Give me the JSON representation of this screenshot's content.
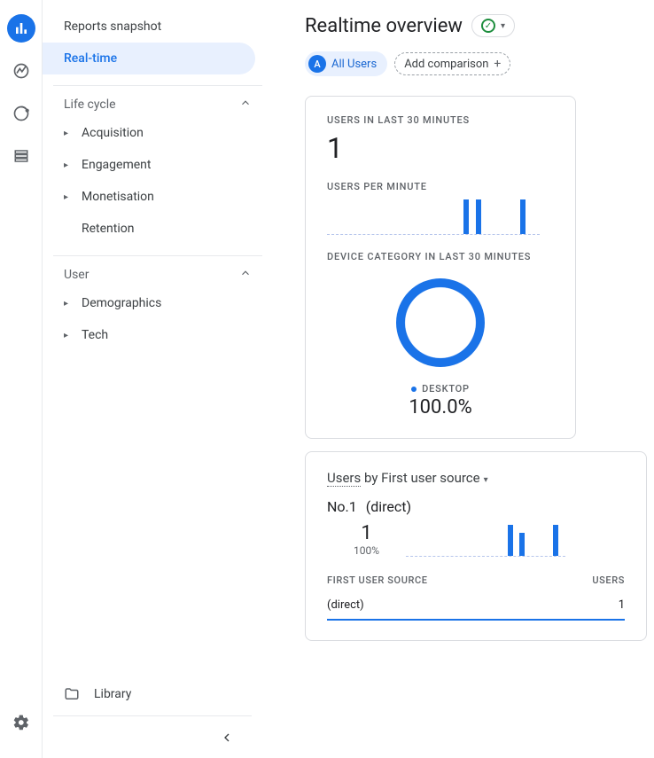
{
  "colors": {
    "primary": "#1a73e8",
    "success": "#1e8e3e",
    "text_muted": "#5f6368"
  },
  "sidebar": {
    "snapshot": "Reports snapshot",
    "realtime": "Real-time",
    "sections": {
      "lifecycle": {
        "title": "Life cycle",
        "items": [
          "Acquisition",
          "Engagement",
          "Monetisation",
          "Retention"
        ]
      },
      "user": {
        "title": "User",
        "items": [
          "Demographics",
          "Tech"
        ]
      }
    },
    "library": "Library"
  },
  "header": {
    "title": "Realtime overview",
    "chip_badge": "A",
    "chip_label": "All Users",
    "add_comparison": "Add comparison"
  },
  "card1": {
    "users_label": "USERS IN LAST 30 MINUTES",
    "users_value": "1",
    "upm_label": "USERS PER MINUTE",
    "bars": [
      {
        "left_pct": 64,
        "height_pct": 95
      },
      {
        "left_pct": 70,
        "height_pct": 95
      },
      {
        "left_pct": 91,
        "height_pct": 95
      }
    ],
    "device_label": "DEVICE CATEGORY IN LAST 30 MINUTES",
    "donut_pct": 100,
    "donut_color": "#1a73e8",
    "legend_name": "DESKTOP",
    "legend_value": "100.0%"
  },
  "card2": {
    "title_metric": "Users",
    "title_rest": " by First user source",
    "rank_label": "No.1",
    "rank_value": "(direct)",
    "stat_value": "1",
    "stat_pct": "100%",
    "bars": [
      {
        "left_pct": 64,
        "height_pct": 95
      },
      {
        "left_pct": 71,
        "height_pct": 70
      },
      {
        "left_pct": 92,
        "height_pct": 95
      }
    ],
    "col1": "FIRST USER SOURCE",
    "col2": "USERS",
    "row_source": "(direct)",
    "row_count": "1"
  }
}
